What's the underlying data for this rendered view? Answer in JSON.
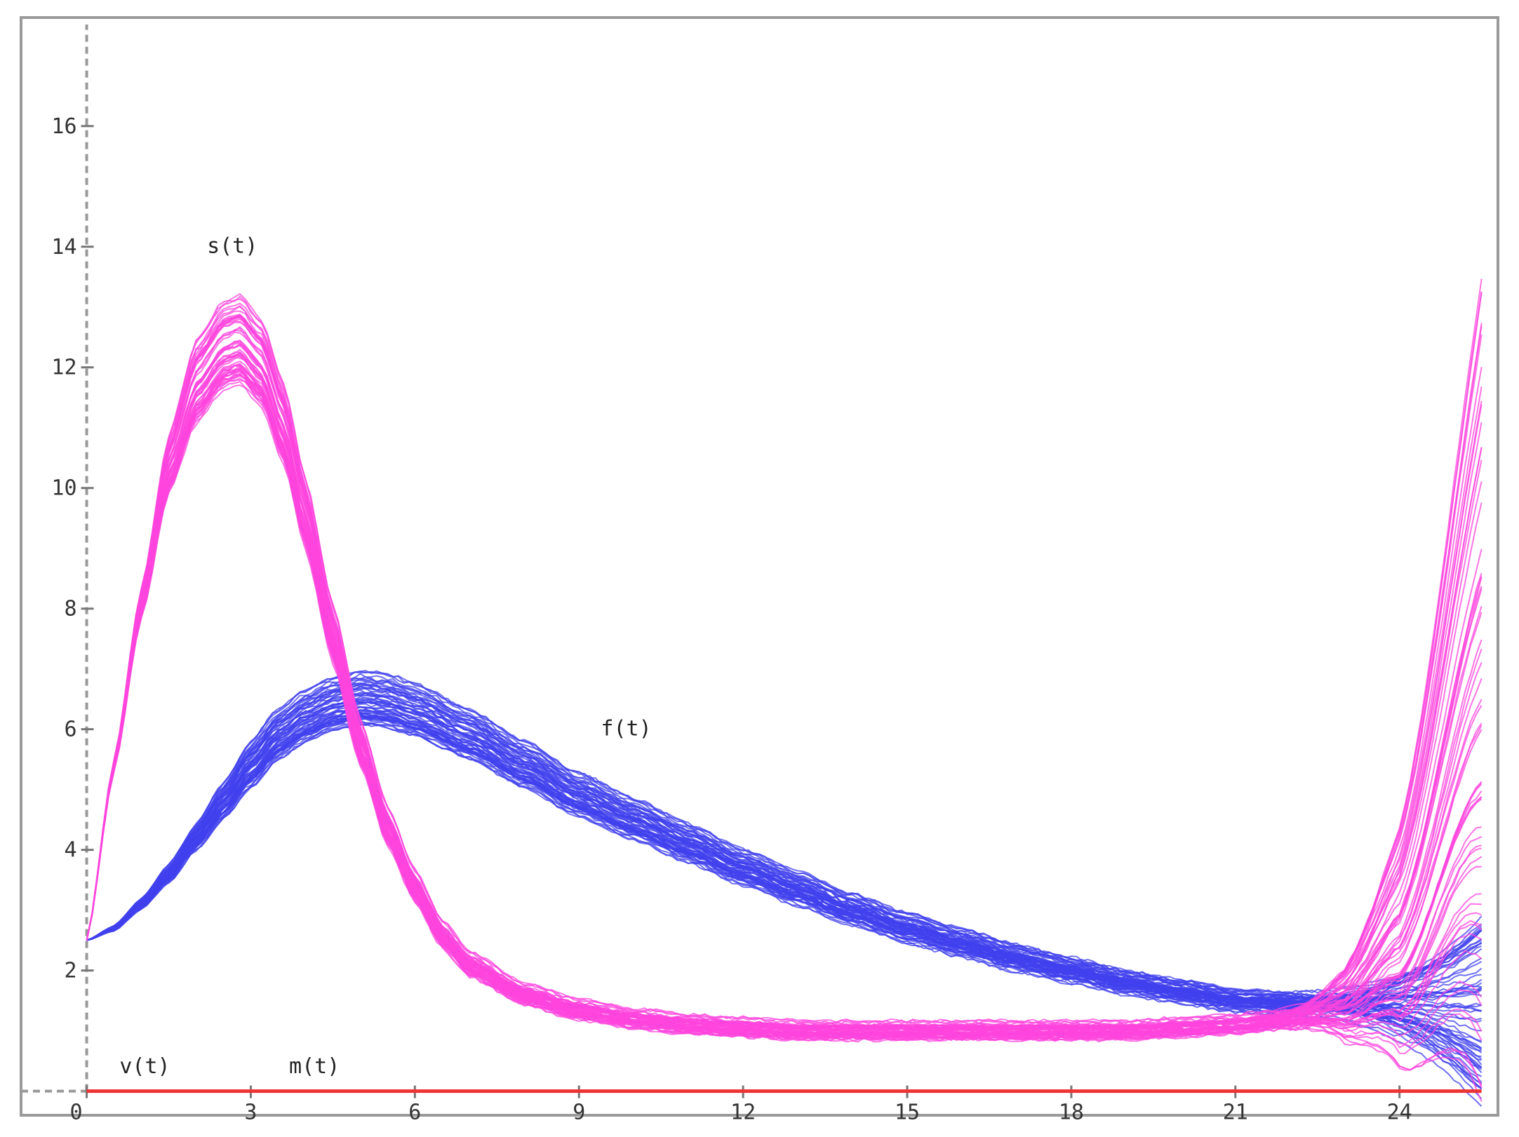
{
  "chart_data": {
    "type": "line",
    "title": "",
    "xlabel": "",
    "ylabel": "",
    "xlim": [
      -1.2,
      25.8
    ],
    "ylim": [
      -0.4,
      17.8
    ],
    "x_ticks": [
      0,
      3,
      6,
      9,
      12,
      15,
      18,
      21,
      24
    ],
    "x_tick_labels": [
      "0",
      "3",
      "6",
      "9",
      "12",
      "15",
      "18",
      "21",
      "24"
    ],
    "y_ticks": [
      2,
      4,
      6,
      8,
      10,
      12,
      14,
      16
    ],
    "y_tick_labels": [
      "2",
      "4",
      "6",
      "8",
      "10",
      "12",
      "14",
      "16"
    ],
    "grid": false,
    "colors": {
      "s": "#ff44dd",
      "f": "#4040ee",
      "v": "#ee3333",
      "axis": "#999999",
      "frame": "#999999"
    },
    "annotations": [
      {
        "text": "s(t)",
        "x": 2.2,
        "y": 13.9
      },
      {
        "text": "f(t)",
        "x": 9.4,
        "y": 5.9
      },
      {
        "text": "v(t)",
        "x": 0.6,
        "y": 0.3
      },
      {
        "text": "m(t)",
        "x": 3.7,
        "y": 0.3
      }
    ],
    "series": [
      {
        "key": "s",
        "x": [
          0,
          0.5,
          1,
          1.5,
          2,
          2.5,
          2.8,
          3.2,
          3.6,
          4,
          4.5,
          5,
          5.5,
          6,
          6.5,
          7,
          8,
          9,
          10,
          11,
          12,
          13,
          14,
          15,
          16,
          17,
          18,
          19,
          20,
          21,
          22,
          23,
          24,
          25.5
        ],
        "y": [
          2.5,
          5.4,
          8.1,
          10.4,
          11.8,
          12.4,
          12.5,
          12.1,
          11.1,
          9.6,
          7.6,
          5.8,
          4.4,
          3.4,
          2.6,
          2.1,
          1.6,
          1.35,
          1.2,
          1.1,
          1.05,
          1.0,
          1.0,
          1.0,
          1.0,
          1.0,
          1.0,
          1.0,
          1.05,
          1.1,
          1.2,
          1.4,
          2.2,
          6.0
        ]
      },
      {
        "key": "f",
        "x": [
          0,
          0.5,
          1,
          1.5,
          2,
          2.5,
          3,
          3.5,
          4,
          4.5,
          5,
          5.5,
          6,
          7,
          8,
          9,
          10,
          11,
          12,
          13,
          14,
          15,
          16,
          17,
          18,
          19,
          20,
          21,
          22,
          23,
          24,
          25.5
        ],
        "y": [
          2.5,
          2.7,
          3.1,
          3.6,
          4.2,
          4.8,
          5.4,
          5.9,
          6.2,
          6.4,
          6.5,
          6.45,
          6.3,
          5.9,
          5.4,
          4.9,
          4.5,
          4.1,
          3.7,
          3.35,
          3.0,
          2.7,
          2.45,
          2.2,
          2.0,
          1.8,
          1.65,
          1.5,
          1.45,
          1.45,
          1.45,
          1.4
        ]
      },
      {
        "key": "v",
        "x": [
          0,
          25.5
        ],
        "y": [
          0,
          0
        ]
      }
    ]
  }
}
